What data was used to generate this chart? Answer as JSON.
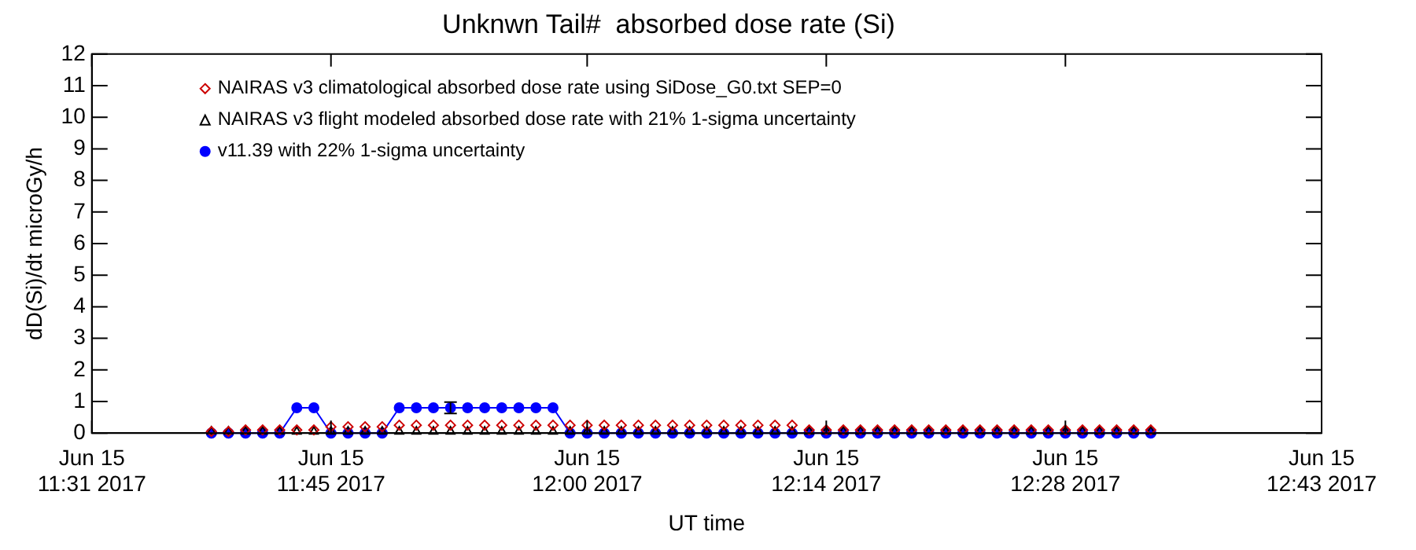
{
  "chart_data": {
    "type": "line",
    "title": "Unknwn Tail#  absorbed dose rate (Si)",
    "xlabel": "UT time",
    "ylabel": "dD(Si)/dt microGy/h",
    "x": [
      "2017-06-15T11:38",
      "2017-06-15T11:39",
      "2017-06-15T11:40",
      "2017-06-15T11:41",
      "2017-06-15T11:42",
      "2017-06-15T11:43",
      "2017-06-15T11:44",
      "2017-06-15T11:45",
      "2017-06-15T11:46",
      "2017-06-15T11:47",
      "2017-06-15T11:48",
      "2017-06-15T11:49",
      "2017-06-15T11:50",
      "2017-06-15T11:51",
      "2017-06-15T11:52",
      "2017-06-15T11:53",
      "2017-06-15T11:54",
      "2017-06-15T11:55",
      "2017-06-15T11:56",
      "2017-06-15T11:57",
      "2017-06-15T11:58",
      "2017-06-15T11:59",
      "2017-06-15T12:00",
      "2017-06-15T12:01",
      "2017-06-15T12:02",
      "2017-06-15T12:03",
      "2017-06-15T12:04",
      "2017-06-15T12:05",
      "2017-06-15T12:06",
      "2017-06-15T12:07",
      "2017-06-15T12:08",
      "2017-06-15T12:09",
      "2017-06-15T12:10",
      "2017-06-15T12:11",
      "2017-06-15T12:12",
      "2017-06-15T12:13",
      "2017-06-15T12:14",
      "2017-06-15T12:15",
      "2017-06-15T12:16",
      "2017-06-15T12:17",
      "2017-06-15T12:18",
      "2017-06-15T12:19",
      "2017-06-15T12:20",
      "2017-06-15T12:21",
      "2017-06-15T12:22",
      "2017-06-15T12:23",
      "2017-06-15T12:24",
      "2017-06-15T12:25",
      "2017-06-15T12:26",
      "2017-06-15T12:27",
      "2017-06-15T12:28",
      "2017-06-15T12:29",
      "2017-06-15T12:30",
      "2017-06-15T12:31",
      "2017-06-15T12:32",
      "2017-06-15T12:33"
    ],
    "series": [
      {
        "name": "NAIRAS v3 climatological absorbed dose rate using SiDose_G0.txt SEP=0",
        "type": "scatter",
        "marker": "diamond",
        "color": "#cc0000",
        "values": [
          0.05,
          0.05,
          0.1,
          0.1,
          0.1,
          0.1,
          0.1,
          0.2,
          0.2,
          0.2,
          0.2,
          0.25,
          0.25,
          0.25,
          0.25,
          0.25,
          0.25,
          0.25,
          0.25,
          0.25,
          0.25,
          0.25,
          0.25,
          0.25,
          0.25,
          0.25,
          0.25,
          0.25,
          0.25,
          0.25,
          0.25,
          0.25,
          0.25,
          0.25,
          0.25,
          0.1,
          0.1,
          0.1,
          0.1,
          0.1,
          0.1,
          0.1,
          0.1,
          0.1,
          0.1,
          0.1,
          0.1,
          0.1,
          0.1,
          0.1,
          0.1,
          0.1,
          0.1,
          0.1,
          0.1,
          0.1
        ]
      },
      {
        "name": "NAIRAS v3 flight modeled absorbed dose rate with 21% 1-sigma uncertainty",
        "type": "scatter",
        "marker": "triangle",
        "color": "#000000",
        "values": [
          0.05,
          0.05,
          0.05,
          0.05,
          0.05,
          0.05,
          0.05,
          0.05,
          0.05,
          0.05,
          0.05,
          0.05,
          0.05,
          0.05,
          0.05,
          0.05,
          0.05,
          0.05,
          0.05,
          0.05,
          0.05,
          0.05,
          0.05,
          0.05,
          0.05,
          0.05,
          0.05,
          0.05,
          0.05,
          0.05,
          0.05,
          0.05,
          0.05,
          0.05,
          0.05,
          0.05,
          0.05,
          0.05,
          0.05,
          0.05,
          0.05,
          0.05,
          0.05,
          0.05,
          0.05,
          0.05,
          0.05,
          0.05,
          0.05,
          0.05,
          0.05,
          0.05,
          0.05,
          0.05,
          0.05,
          0.05
        ]
      },
      {
        "name": "v11.39 with 22% 1-sigma uncertainty",
        "type": "line",
        "marker": "circle",
        "color": "#0000ff",
        "values": [
          0,
          0,
          0,
          0,
          0,
          0.8,
          0.8,
          0,
          0,
          0,
          0,
          0.8,
          0.8,
          0.8,
          0.8,
          0.8,
          0.8,
          0.8,
          0.8,
          0.8,
          0.8,
          0,
          0,
          0,
          0,
          0,
          0,
          0,
          0,
          0,
          0,
          0,
          0,
          0,
          0,
          0,
          0,
          0,
          0,
          0,
          0,
          0,
          0,
          0,
          0,
          0,
          0,
          0,
          0,
          0,
          0,
          0,
          0,
          0,
          0,
          0
        ],
        "errors": [
          null,
          null,
          null,
          null,
          null,
          null,
          null,
          null,
          null,
          null,
          null,
          null,
          null,
          null,
          0.18,
          null,
          null,
          null,
          null,
          null,
          null,
          null,
          null,
          null,
          null,
          null,
          null,
          null,
          null,
          null,
          null,
          null,
          null,
          null,
          null,
          null,
          null,
          null,
          null,
          null,
          null,
          null,
          null,
          null,
          null,
          null,
          null,
          null,
          null,
          null,
          null,
          null,
          null,
          null,
          null,
          null
        ]
      }
    ],
    "xlim": [
      "2017-06-15T11:31",
      "2017-06-15T12:43"
    ],
    "xticks": [
      {
        "value": "2017-06-15T11:31",
        "label": "Jun 15\n11:31 2017"
      },
      {
        "value": "2017-06-15T11:45",
        "label": "Jun 15\n11:45 2017"
      },
      {
        "value": "2017-06-15T12:00",
        "label": "Jun 15\n12:00 2017"
      },
      {
        "value": "2017-06-15T12:14",
        "label": "Jun 15\n12:14 2017"
      },
      {
        "value": "2017-06-15T12:28",
        "label": "Jun 15\n12:28 2017"
      },
      {
        "value": "2017-06-15T12:43",
        "label": "Jun 15\n12:43 2017"
      }
    ],
    "ylim": [
      0,
      12
    ],
    "yticks": [
      0,
      1,
      2,
      3,
      4,
      5,
      6,
      7,
      8,
      9,
      10,
      11,
      12
    ],
    "grid": false,
    "legend": "top left"
  }
}
